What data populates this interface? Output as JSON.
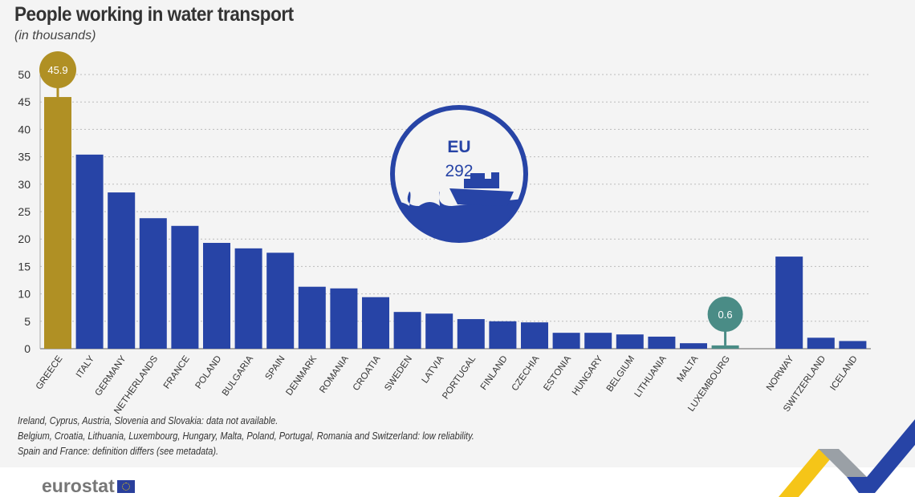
{
  "chart_data": {
    "type": "bar",
    "title": "People working in water transport",
    "subtitle": "(in thousands)",
    "categories": [
      "GREECE",
      "ITALY",
      "GERMANY",
      "NETHERLANDS",
      "FRANCE",
      "POLAND",
      "BULGARIA",
      "SPAIN",
      "DENMARK",
      "ROMANIA",
      "CROATIA",
      "SWEDEN",
      "LATVIA",
      "PORTUGAL",
      "FINLAND",
      "CZECHIA",
      "ESTONIA",
      "HUNGARY",
      "BELGIUM",
      "LITHUANIA",
      "MALTA",
      "LUXEMBOURG",
      "NORWAY",
      "SWITZERLAND",
      "ICELAND"
    ],
    "values": [
      45.9,
      35.4,
      28.5,
      23.8,
      22.4,
      19.3,
      18.3,
      17.5,
      11.3,
      11.0,
      9.4,
      6.7,
      6.4,
      5.4,
      5.0,
      4.8,
      2.9,
      2.9,
      2.6,
      2.2,
      1.0,
      0.6,
      16.8,
      2.0,
      1.4
    ],
    "ylim": [
      0,
      50
    ],
    "yticks": [
      0,
      5,
      10,
      15,
      20,
      25,
      30,
      35,
      40,
      45,
      50
    ],
    "grid": true,
    "highlights": [
      {
        "category": "GREECE",
        "label": "45.9",
        "color": "#b09024"
      },
      {
        "category": "LUXEMBOURG",
        "label": "0.6",
        "color": "#4a8c86"
      }
    ],
    "bar_color": "#2744a6",
    "eu_badge": {
      "label": "EU",
      "value": "292",
      "icon": "cruise-ship-icon"
    }
  },
  "notes": [
    "Ireland, Cyprus, Austria, Slovenia and Slovakia: data not available.",
    "Belgium, Croatia, Lithuania, Luxembourg, Hungary, Malta, Poland, Portugal, Romania and Switzerland: low reliability.",
    "Spain and France: definition differs (see metadata)."
  ],
  "logo": "eurostat"
}
